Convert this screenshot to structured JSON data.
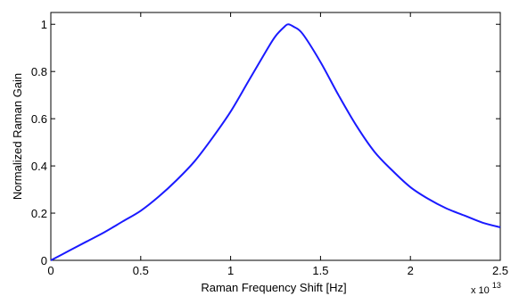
{
  "chart_data": {
    "type": "line",
    "title": "",
    "xlabel": "Raman Frequency Shift [Hz]",
    "ylabel": "Normalized Raman Gain",
    "x_multiplier_label": "x 10",
    "x_multiplier_exponent": "13",
    "xlim": [
      0,
      2.5
    ],
    "ylim": [
      0,
      1.05
    ],
    "x_ticks": [
      {
        "value": 0,
        "label": "0"
      },
      {
        "value": 0.5,
        "label": "0.5"
      },
      {
        "value": 1,
        "label": "1"
      },
      {
        "value": 1.5,
        "label": "1.5"
      },
      {
        "value": 2,
        "label": "2"
      },
      {
        "value": 2.5,
        "label": "2.5"
      }
    ],
    "y_ticks": [
      {
        "value": 0,
        "label": "0"
      },
      {
        "value": 0.2,
        "label": "0.2"
      },
      {
        "value": 0.4,
        "label": "0.4"
      },
      {
        "value": 0.6,
        "label": "0.6"
      },
      {
        "value": 0.8,
        "label": "0.8"
      },
      {
        "value": 1,
        "label": "1"
      }
    ],
    "grid": false,
    "legend": "none",
    "series": [
      {
        "color": "#1a1aff",
        "x": [
          0,
          0.1,
          0.2,
          0.3,
          0.4,
          0.5,
          0.6,
          0.7,
          0.8,
          0.9,
          1.0,
          1.1,
          1.2,
          1.25,
          1.3,
          1.32,
          1.35,
          1.4,
          1.5,
          1.6,
          1.7,
          1.8,
          1.9,
          2.0,
          2.1,
          2.2,
          2.3,
          2.4,
          2.5
        ],
        "y": [
          0,
          0.04,
          0.08,
          0.12,
          0.165,
          0.21,
          0.27,
          0.34,
          0.42,
          0.52,
          0.63,
          0.76,
          0.89,
          0.95,
          0.99,
          1.0,
          0.99,
          0.96,
          0.84,
          0.7,
          0.57,
          0.46,
          0.38,
          0.31,
          0.26,
          0.22,
          0.19,
          0.16,
          0.14
        ]
      }
    ]
  }
}
